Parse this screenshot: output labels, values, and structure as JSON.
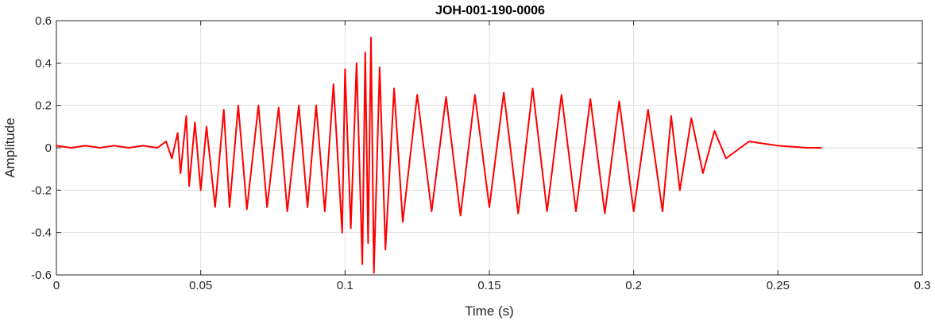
{
  "chart_data": {
    "type": "line",
    "title": "JOH-001-190-0006",
    "xlabel": "Time (s)",
    "ylabel": "Amplitude",
    "xlim": [
      0,
      0.3
    ],
    "ylim": [
      -0.6,
      0.6
    ],
    "x_ticks": [
      0,
      0.05,
      0.1,
      0.15,
      0.2,
      0.25,
      0.3
    ],
    "x_tick_labels": [
      "0",
      "0.05",
      "0.1",
      "0.15",
      "0.2",
      "0.25",
      "0.3"
    ],
    "y_ticks": [
      -0.6,
      -0.4,
      -0.2,
      0,
      0.2,
      0.4,
      0.6
    ],
    "y_tick_labels": [
      "-0.6",
      "-0.4",
      "-0.2",
      "0",
      "0.2",
      "0.4",
      "0.6"
    ],
    "grid": true,
    "line_color": "#ff0000",
    "series": [
      {
        "x": [
          0,
          0.005,
          0.01,
          0.015,
          0.02,
          0.025,
          0.03,
          0.035,
          0.038,
          0.04,
          0.042,
          0.043,
          0.045,
          0.046,
          0.048,
          0.05,
          0.052,
          0.055,
          0.058,
          0.06,
          0.063,
          0.066,
          0.07,
          0.073,
          0.077,
          0.08,
          0.084,
          0.087,
          0.09,
          0.093,
          0.096,
          0.099,
          0.1,
          0.102,
          0.104,
          0.106,
          0.107,
          0.108,
          0.109,
          0.11,
          0.112,
          0.114,
          0.117,
          0.12,
          0.125,
          0.13,
          0.135,
          0.14,
          0.145,
          0.15,
          0.155,
          0.16,
          0.165,
          0.17,
          0.175,
          0.18,
          0.185,
          0.19,
          0.195,
          0.2,
          0.205,
          0.21,
          0.213,
          0.216,
          0.22,
          0.224,
          0.228,
          0.232,
          0.24,
          0.25,
          0.26,
          0.265
        ],
        "y": [
          0.01,
          0.0,
          0.01,
          0.0,
          0.01,
          0.0,
          0.01,
          0.0,
          0.03,
          -0.05,
          0.07,
          -0.12,
          0.15,
          -0.18,
          0.12,
          -0.2,
          0.1,
          -0.28,
          0.18,
          -0.28,
          0.2,
          -0.29,
          0.2,
          -0.28,
          0.19,
          -0.3,
          0.2,
          -0.28,
          0.2,
          -0.3,
          0.3,
          -0.4,
          0.37,
          -0.38,
          0.4,
          -0.55,
          0.45,
          -0.45,
          0.52,
          -0.59,
          0.38,
          -0.48,
          0.28,
          -0.35,
          0.25,
          -0.3,
          0.24,
          -0.32,
          0.25,
          -0.28,
          0.26,
          -0.31,
          0.28,
          -0.3,
          0.25,
          -0.3,
          0.23,
          -0.31,
          0.22,
          -0.3,
          0.18,
          -0.3,
          0.15,
          -0.2,
          0.14,
          -0.12,
          0.08,
          -0.05,
          0.03,
          0.01,
          0.0,
          0.0
        ]
      }
    ]
  }
}
